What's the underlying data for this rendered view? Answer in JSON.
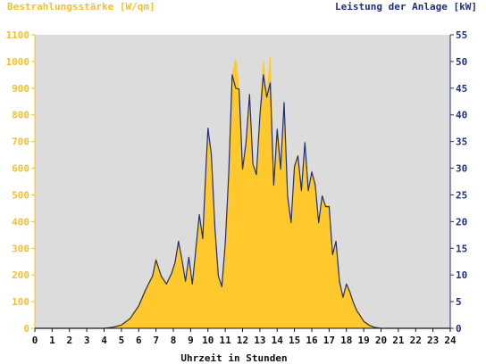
{
  "chart_data": {
    "type": "area",
    "ylabel_left": "Bestrahlungsstärke [W/qm]",
    "ylabel_right": "Leistung der Anlage [kW]",
    "xlabel": "Uhrzeit in Stunden",
    "xlim": [
      0,
      24
    ],
    "ylim_left": [
      0,
      1100
    ],
    "ylim_right": [
      0,
      55
    ],
    "x_ticks": [
      "0",
      "1",
      "2",
      "3",
      "4",
      "5",
      "6",
      "7",
      "8",
      "9",
      "10",
      "11",
      "12",
      "13",
      "14",
      "15",
      "16",
      "17",
      "18",
      "19",
      "20",
      "21",
      "22",
      "23",
      "24"
    ],
    "y_ticks_left": [
      "0",
      "100",
      "200",
      "300",
      "400",
      "500",
      "600",
      "700",
      "800",
      "900",
      "1000",
      "1100"
    ],
    "y_ticks_right": [
      "0",
      "5",
      "10",
      "15",
      "20",
      "25",
      "30",
      "35",
      "40",
      "45",
      "50",
      "55"
    ],
    "colors": {
      "plot_background": "#dcdcdc",
      "irradiance": "#ffc92e",
      "power": "#1f2f7a",
      "left_axis_labels": "#f2c12e",
      "right_axis_labels": "#1f2f7a"
    },
    "series": [
      {
        "name": "Bestrahlungsstärke [W/qm]",
        "axis": "left",
        "style": "area",
        "x": [
          0,
          4.0,
          4.5,
          5.0,
          5.5,
          6.0,
          6.4,
          6.8,
          7.0,
          7.3,
          7.6,
          7.9,
          8.1,
          8.3,
          8.5,
          8.7,
          8.9,
          9.1,
          9.3,
          9.5,
          9.7,
          9.9,
          10.0,
          10.2,
          10.4,
          10.6,
          10.8,
          11.0,
          11.2,
          11.4,
          11.6,
          11.8,
          12.0,
          12.2,
          12.4,
          12.6,
          12.8,
          13.0,
          13.2,
          13.4,
          13.6,
          13.8,
          14.0,
          14.2,
          14.4,
          14.6,
          14.8,
          15.0,
          15.2,
          15.4,
          15.6,
          15.8,
          16.0,
          16.2,
          16.4,
          16.6,
          16.8,
          17.0,
          17.2,
          17.4,
          17.6,
          17.8,
          18.0,
          18.2,
          18.4,
          18.6,
          18.8,
          19.0,
          19.3,
          19.6,
          20.0,
          20.3,
          20.6,
          21.0,
          24.0
        ],
        "y": [
          0,
          0,
          5,
          15,
          40,
          90,
          150,
          200,
          260,
          200,
          170,
          210,
          250,
          330,
          260,
          180,
          270,
          170,
          300,
          430,
          340,
          620,
          750,
          650,
          380,
          200,
          160,
          320,
          580,
          950,
          1010,
          900,
          600,
          700,
          880,
          620,
          580,
          800,
          1000,
          870,
          1020,
          540,
          750,
          600,
          850,
          500,
          400,
          610,
          650,
          520,
          700,
          520,
          590,
          540,
          400,
          500,
          460,
          460,
          280,
          330,
          180,
          120,
          170,
          140,
          100,
          70,
          50,
          30,
          15,
          5,
          0,
          0,
          0,
          0,
          0
        ]
      },
      {
        "name": "Leistung der Anlage [kW]",
        "axis": "right",
        "style": "line",
        "x": [
          0,
          4.0,
          4.5,
          5.0,
          5.5,
          6.0,
          6.4,
          6.8,
          7.0,
          7.3,
          7.6,
          7.9,
          8.1,
          8.3,
          8.5,
          8.7,
          8.9,
          9.1,
          9.3,
          9.5,
          9.7,
          9.9,
          10.0,
          10.2,
          10.4,
          10.6,
          10.8,
          11.0,
          11.2,
          11.4,
          11.6,
          11.8,
          12.0,
          12.2,
          12.4,
          12.6,
          12.8,
          13.0,
          13.2,
          13.4,
          13.6,
          13.8,
          14.0,
          14.2,
          14.4,
          14.6,
          14.8,
          15.0,
          15.2,
          15.4,
          15.6,
          15.8,
          16.0,
          16.2,
          16.4,
          16.6,
          16.8,
          17.0,
          17.2,
          17.4,
          17.6,
          17.8,
          18.0,
          18.2,
          18.4,
          18.6,
          18.8,
          19.0,
          19.3,
          19.6,
          20.0,
          20.3,
          20.6,
          21.0,
          24.0
        ],
        "y": [
          0,
          0,
          0.2,
          0.6,
          1.8,
          4.2,
          7.2,
          9.8,
          12.8,
          9.8,
          8.3,
          10.3,
          12.3,
          16.3,
          12.8,
          8.8,
          13.3,
          8.3,
          14.8,
          21.3,
          16.8,
          31.0,
          37.5,
          32.5,
          19.0,
          9.8,
          7.8,
          15.8,
          28.8,
          47.5,
          45.0,
          44.8,
          29.8,
          34.8,
          43.8,
          30.8,
          28.8,
          39.8,
          47.5,
          43.3,
          46.0,
          26.8,
          37.3,
          29.8,
          42.3,
          24.8,
          19.8,
          30.3,
          32.3,
          25.8,
          34.8,
          25.8,
          29.3,
          26.8,
          19.8,
          24.8,
          22.8,
          22.8,
          13.8,
          16.3,
          8.8,
          5.8,
          8.3,
          6.8,
          4.8,
          3.3,
          2.3,
          1.3,
          0.6,
          0.2,
          0,
          0,
          0,
          0,
          0
        ]
      }
    ]
  }
}
